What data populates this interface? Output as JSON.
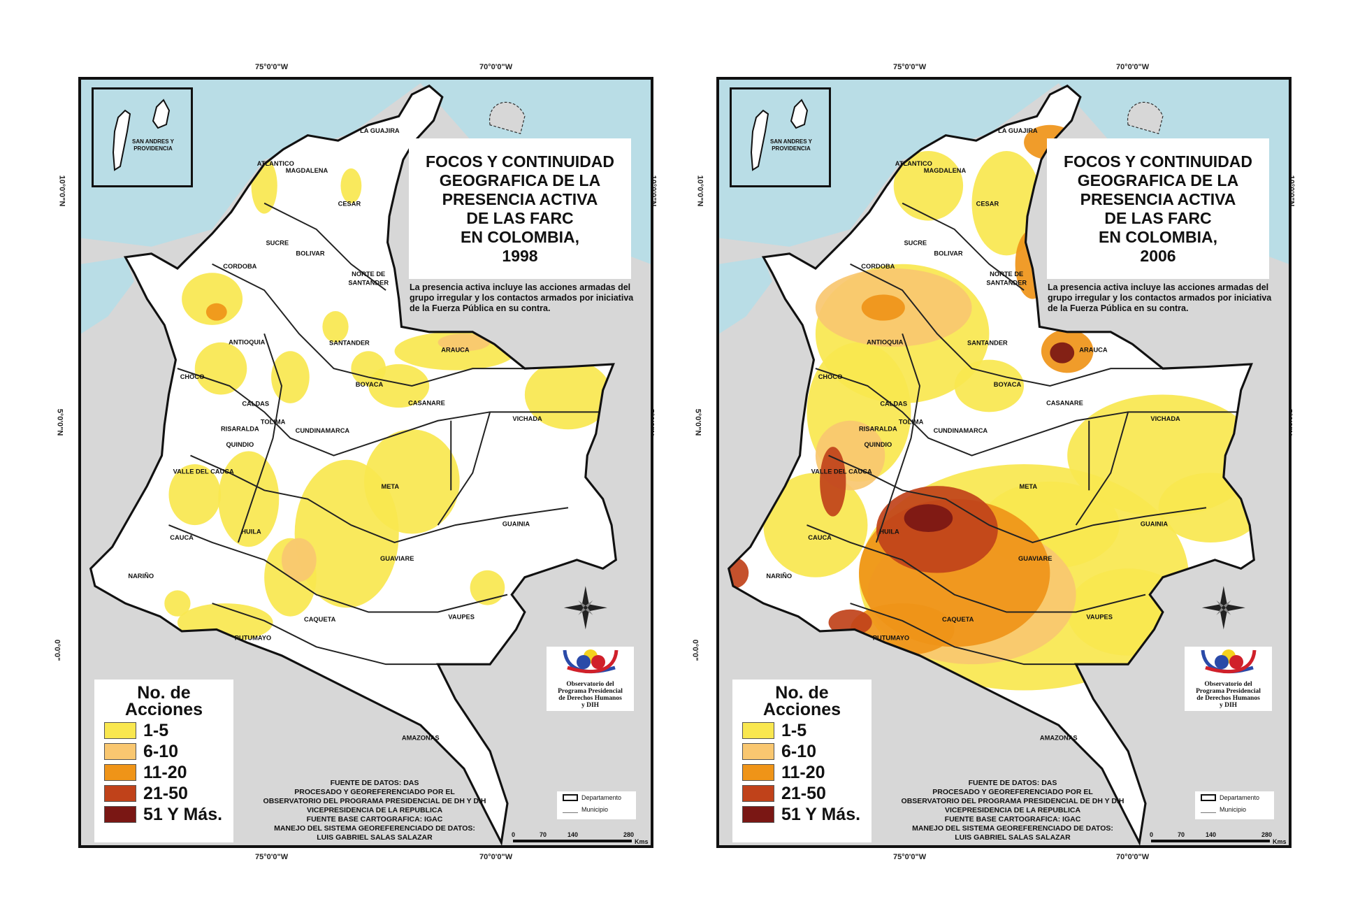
{
  "shared": {
    "title_lines": [
      "FOCOS Y CONTINUIDAD",
      "GEOGRAFICA DE LA",
      "PRESENCIA ACTIVA",
      "DE LAS FARC",
      "EN COLOMBIA,"
    ],
    "description": "La presencia activa incluye las acciones armadas del grupo irregular y los contactos armados por iniciativa de la Fuerza Pública en su contra.",
    "inset_label": "SAN ANDRES Y PROVIDENCIA",
    "longitudes": [
      "75°0'0\"W",
      "70°0'0\"W"
    ],
    "latitudes": [
      "10°0'0\"N",
      "5°0'0\"N",
      "0°0'0\""
    ],
    "legend": {
      "title_lines": [
        "No. de",
        "Acciones"
      ],
      "items": [
        {
          "label": "1-5",
          "color": "#f9e74f"
        },
        {
          "label": "6-10",
          "color": "#f9c770"
        },
        {
          "label": "11-20",
          "color": "#ef9418"
        },
        {
          "label": "21-50",
          "color": "#c0421a"
        },
        {
          "label": "51 Y Más.",
          "color": "#7a1714"
        }
      ]
    },
    "sources": [
      "FUENTE DE DATOS: DAS",
      "PROCESADO Y GEOREFERENCIADO POR EL",
      "OBSERVATORIO DEL PROGRAMA PRESIDENCIAL DE DH Y DIH",
      "VICEPRESIDENCIA DE LA REPUBLICA",
      "FUENTE BASE CARTOGRAFICA: IGAC",
      "MANEJO DEL SISTEMA GEOREFERENCIADO DE DATOS:",
      "LUIS GABRIEL SALAS SALAZAR"
    ],
    "logo_text": [
      "Observatorio del",
      "Programa Presidencial",
      "de Derechos Humanos",
      "y DIH"
    ],
    "boundary_legend": [
      "Departamento",
      "Municipio"
    ],
    "scale": {
      "ticks": [
        "0",
        "70",
        "140",
        "280"
      ],
      "unit": "Kms"
    },
    "departments": [
      "LA GUAJIRA",
      "ATLANTICO",
      "MAGDALENA",
      "CESAR",
      "SUCRE",
      "BOLIVAR",
      "CORDOBA",
      "NORTE DE",
      "SANTANDER",
      "ANTIOQUIA",
      "SANTANDER",
      "ARAUCA",
      "CHOCO",
      "BOYACA",
      "CALDAS",
      "CASANARE",
      "RISARALDA",
      "TOLIMA",
      "CUNDINAMARCA",
      "VICHADA",
      "QUINDIO",
      "VALLE DEL CAUCA",
      "META",
      "GUAINIA",
      "HUILA",
      "CAUCA",
      "GUAVIARE",
      "NARIÑO",
      "CAQUETA",
      "VAUPES",
      "PUTUMAYO",
      "AMAZONAS"
    ],
    "colors": {
      "sea": "#b9dde6",
      "neighbor_land": "#d7d7d7",
      "country": "#ffffff"
    }
  },
  "maps": [
    {
      "year": "1998"
    },
    {
      "year": "2006"
    }
  ]
}
